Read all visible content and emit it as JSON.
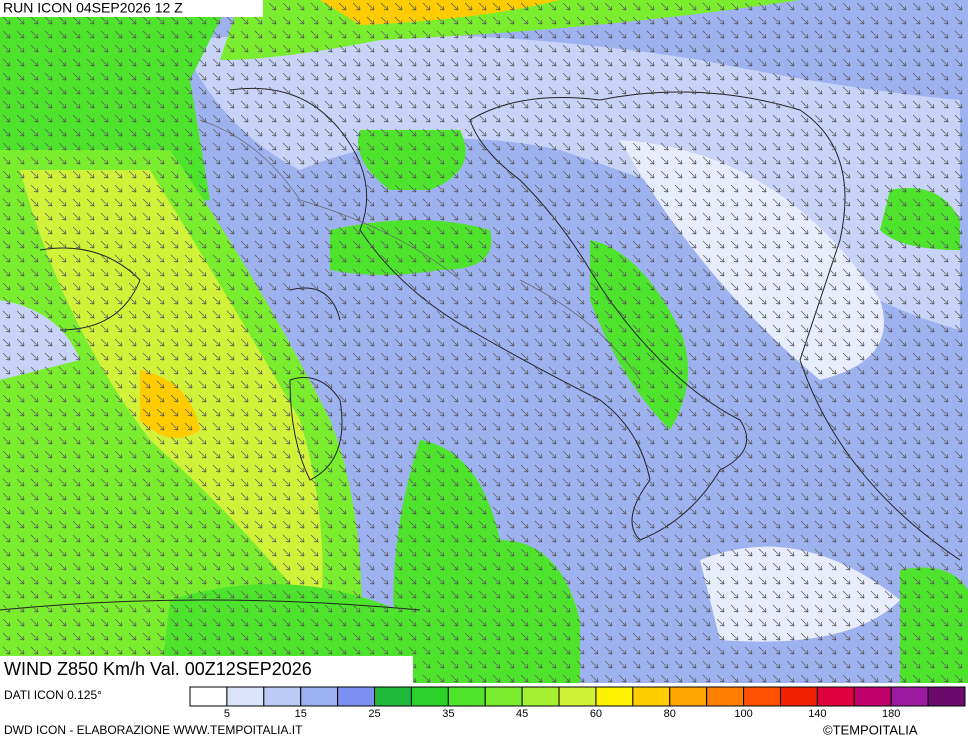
{
  "header": {
    "run": "RUN ICON 04SEP2026 12 Z",
    "title": "WIND Z850 Km/h Val. 00Z12SEP2026"
  },
  "footer": {
    "data_source": "DATI ICON 0.125°",
    "credits": "DWD ICON - ELABORAZIONE WWW.TEMPOITALIA.IT",
    "copyright": "©TEMPOITALIA"
  },
  "legend": {
    "colors": [
      "#ffffff",
      "#dbe3fb",
      "#bccbf5",
      "#9bb0f0",
      "#7d8ff0",
      "#1fb83a",
      "#2ad22a",
      "#4ee42e",
      "#7aee2e",
      "#a6f032",
      "#d2f23a",
      "#fff200",
      "#ffcc00",
      "#ffa500",
      "#ff7f00",
      "#ff5000",
      "#f02000",
      "#e00040",
      "#c0006a",
      "#9a1aa0",
      "#6a0a6a"
    ],
    "labels": [
      "5",
      "15",
      "25",
      "35",
      "45",
      "60",
      "80",
      "100",
      "140",
      "180"
    ]
  }
}
